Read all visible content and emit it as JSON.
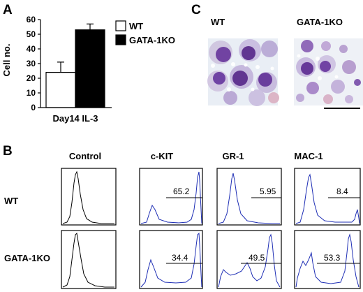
{
  "panels": {
    "a": {
      "letter": "A",
      "chart_data": {
        "type": "bar",
        "categories": [
          "WT",
          "GATA-1KO"
        ],
        "values": [
          24,
          53
        ],
        "errors": [
          7,
          4
        ],
        "ylim": [
          0,
          60
        ],
        "yticks": [
          0,
          10,
          20,
          30,
          40,
          50,
          60
        ],
        "ylabel": "Cell no.",
        "xlabel": "Day14 IL-3",
        "legend": [
          {
            "label": "WT",
            "fill": "#ffffff"
          },
          {
            "label": "GATA-1KO",
            "fill": "#000000"
          }
        ],
        "legend_placement": "right"
      }
    },
    "c": {
      "letter": "C",
      "labels": [
        "WT",
        "GATA-1KO"
      ]
    },
    "b": {
      "letter": "B",
      "columns": [
        "Control",
        "c-KIT",
        "GR-1",
        "MAC-1"
      ],
      "rows": [
        "WT",
        "GATA-1KO"
      ],
      "percentages": {
        "WT": [
          "65.2",
          "5.95",
          "8.4"
        ],
        "GATA-1KO": [
          "34.4",
          "49.5",
          "53.3"
        ]
      },
      "colors": {
        "control": "#000000",
        "stain": "#1f2fb5"
      }
    }
  }
}
